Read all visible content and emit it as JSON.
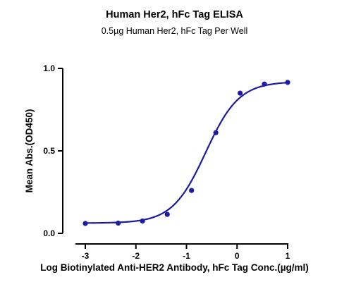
{
  "colors": {
    "series": "#1c1ca0",
    "axis": "#000000",
    "background": "#ffffff"
  },
  "chart_data": {
    "type": "scatter",
    "title": "Human Her2, hFc Tag ELISA",
    "subtitle": "0.5µg Human Her2, hFc Tag Per Well",
    "xlabel": "Log Biotinylated Anti-HER2 Antibody, hFc Tag Conc.(µg/ml)",
    "ylabel": "Mean Abs.(OD450)",
    "xlim": [
      -3.25,
      1.05
    ],
    "ylim": [
      0,
      1.0
    ],
    "x_ticks": [
      -3,
      -2,
      -1,
      0,
      1
    ],
    "x_tick_labels": [
      "-3",
      "-2",
      "-1",
      "0",
      "1"
    ],
    "y_ticks": [
      0.0,
      0.5,
      1.0
    ],
    "y_tick_labels": [
      "0.0",
      "0.5",
      "1.0"
    ],
    "grid": false,
    "legend": "none",
    "series": [
      {
        "x": [
          -3.0,
          -2.35,
          -1.87,
          -1.38,
          -0.9,
          -0.42,
          0.06,
          0.54,
          1.0
        ],
        "y": [
          0.06,
          0.062,
          0.075,
          0.115,
          0.26,
          0.61,
          0.85,
          0.905,
          0.915
        ],
        "fit": {
          "model": "4PL",
          "bottom": 0.062,
          "top": 0.92,
          "logEC50": -0.62,
          "hill": 1.32
        }
      }
    ]
  }
}
